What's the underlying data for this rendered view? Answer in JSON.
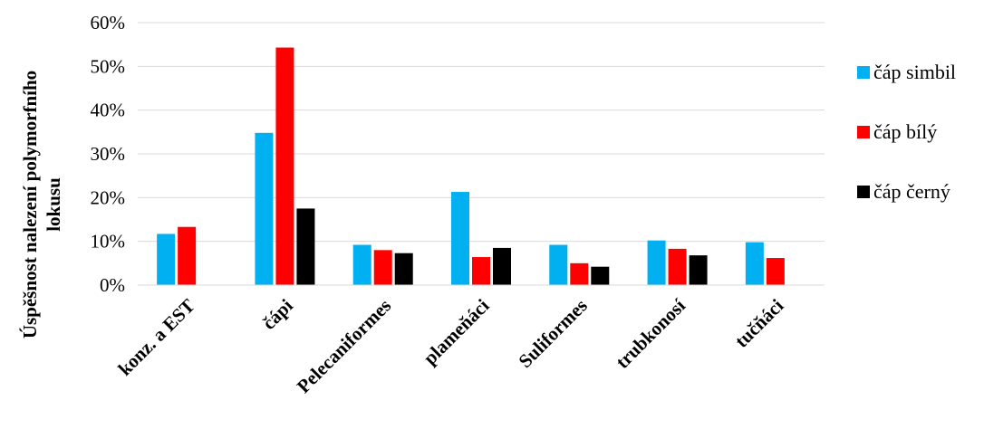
{
  "chart_data": {
    "type": "bar",
    "title": "",
    "xlabel": "",
    "ylabel": [
      "Úspěšnost nalezení polymorfního",
      "lokusu"
    ],
    "ylim": [
      0,
      0.6
    ],
    "yticks": [
      0,
      0.1,
      0.2,
      0.3,
      0.4,
      0.5,
      0.6
    ],
    "ytick_labels": [
      "0%",
      "10%",
      "20%",
      "30%",
      "40%",
      "50%",
      "60%"
    ],
    "grid": "horizontal",
    "legend_position": "right",
    "categories": [
      "konz. a EST",
      "čápi",
      "Pelecaniformes",
      "plameňáci",
      "Suliformes",
      "trubkonosí",
      "tučňáci"
    ],
    "series": [
      {
        "name": "čáp simbil",
        "color": "#00b0f0",
        "values": [
          0.117,
          0.348,
          0.092,
          0.213,
          0.092,
          0.102,
          0.098
        ]
      },
      {
        "name": "čáp bílý",
        "color": "#ff0000",
        "values": [
          0.133,
          0.543,
          0.08,
          0.064,
          0.05,
          0.083,
          0.062
        ]
      },
      {
        "name": "čáp černý",
        "color": "#000000",
        "values": [
          null,
          0.175,
          0.073,
          0.085,
          0.042,
          0.068,
          null
        ]
      }
    ]
  }
}
